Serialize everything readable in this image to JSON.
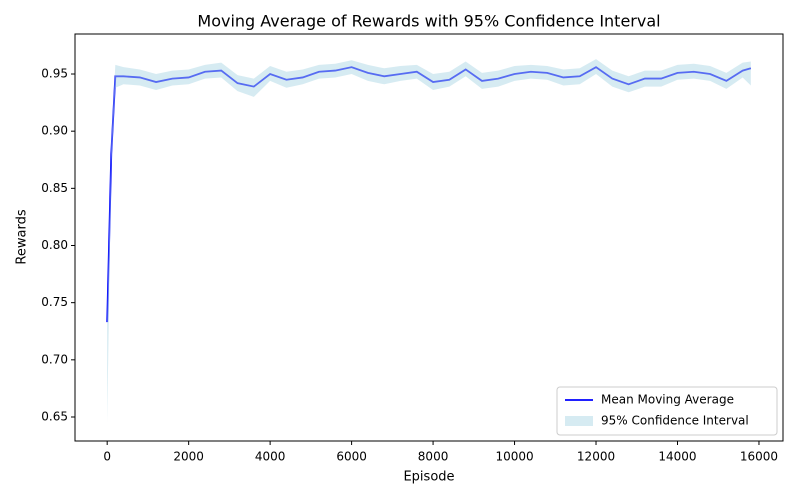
{
  "chart_data": {
    "type": "line",
    "title": "Moving Average of Rewards with 95% Confidence Interval",
    "x_label": "Episode",
    "y_label": "Rewards",
    "x": [
      0,
      100,
      200,
      400,
      800,
      1200,
      1600,
      2000,
      2400,
      2800,
      3200,
      3600,
      4000,
      4400,
      4800,
      5200,
      5600,
      6000,
      6400,
      6800,
      7200,
      7600,
      8000,
      8400,
      8800,
      9200,
      9600,
      10000,
      10400,
      10800,
      11200,
      11600,
      12000,
      12400,
      12800,
      13200,
      13600,
      14000,
      14400,
      14800,
      15200,
      15600,
      15800
    ],
    "series": [
      {
        "name": "Mean Moving Average",
        "color": "#0000ff",
        "values": [
          0.733,
          0.88,
          0.948,
          0.948,
          0.947,
          0.943,
          0.946,
          0.947,
          0.952,
          0.953,
          0.942,
          0.939,
          0.95,
          0.945,
          0.947,
          0.952,
          0.953,
          0.956,
          0.951,
          0.948,
          0.95,
          0.952,
          0.943,
          0.945,
          0.954,
          0.944,
          0.946,
          0.95,
          0.952,
          0.951,
          0.947,
          0.948,
          0.956,
          0.946,
          0.941,
          0.946,
          0.946,
          0.951,
          0.952,
          0.95,
          0.944,
          0.953,
          0.955
        ]
      },
      {
        "name": "95% Confidence Interval",
        "color": "#add8e6",
        "lower": [
          0.645,
          0.87,
          0.938,
          0.941,
          0.94,
          0.936,
          0.94,
          0.941,
          0.946,
          0.947,
          0.935,
          0.93,
          0.944,
          0.938,
          0.941,
          0.946,
          0.947,
          0.95,
          0.944,
          0.941,
          0.944,
          0.946,
          0.936,
          0.939,
          0.948,
          0.937,
          0.939,
          0.944,
          0.946,
          0.945,
          0.94,
          0.941,
          0.95,
          0.939,
          0.934,
          0.939,
          0.939,
          0.945,
          0.946,
          0.944,
          0.937,
          0.947,
          0.94
        ],
        "upper": [
          0.735,
          0.89,
          0.958,
          0.956,
          0.954,
          0.95,
          0.953,
          0.954,
          0.958,
          0.96,
          0.949,
          0.946,
          0.957,
          0.952,
          0.954,
          0.958,
          0.959,
          0.962,
          0.958,
          0.955,
          0.957,
          0.958,
          0.95,
          0.952,
          0.961,
          0.951,
          0.953,
          0.957,
          0.958,
          0.957,
          0.954,
          0.955,
          0.963,
          0.953,
          0.948,
          0.953,
          0.953,
          0.958,
          0.959,
          0.957,
          0.951,
          0.96,
          0.961
        ]
      }
    ],
    "xlim": [
      -790,
      16590
    ],
    "ylim": [
      0.629,
      0.985
    ],
    "xticks": [
      0,
      2000,
      4000,
      6000,
      8000,
      10000,
      12000,
      14000,
      16000
    ],
    "yticks": [
      0.65,
      {
        "value": 0.7,
        "label": "0.70"
      },
      0.75,
      {
        "value": 0.8,
        "label": "0.80"
      },
      0.85,
      {
        "value": 0.9,
        "label": "0.90"
      },
      0.95
    ],
    "legend": "lower right",
    "grid": false
  }
}
